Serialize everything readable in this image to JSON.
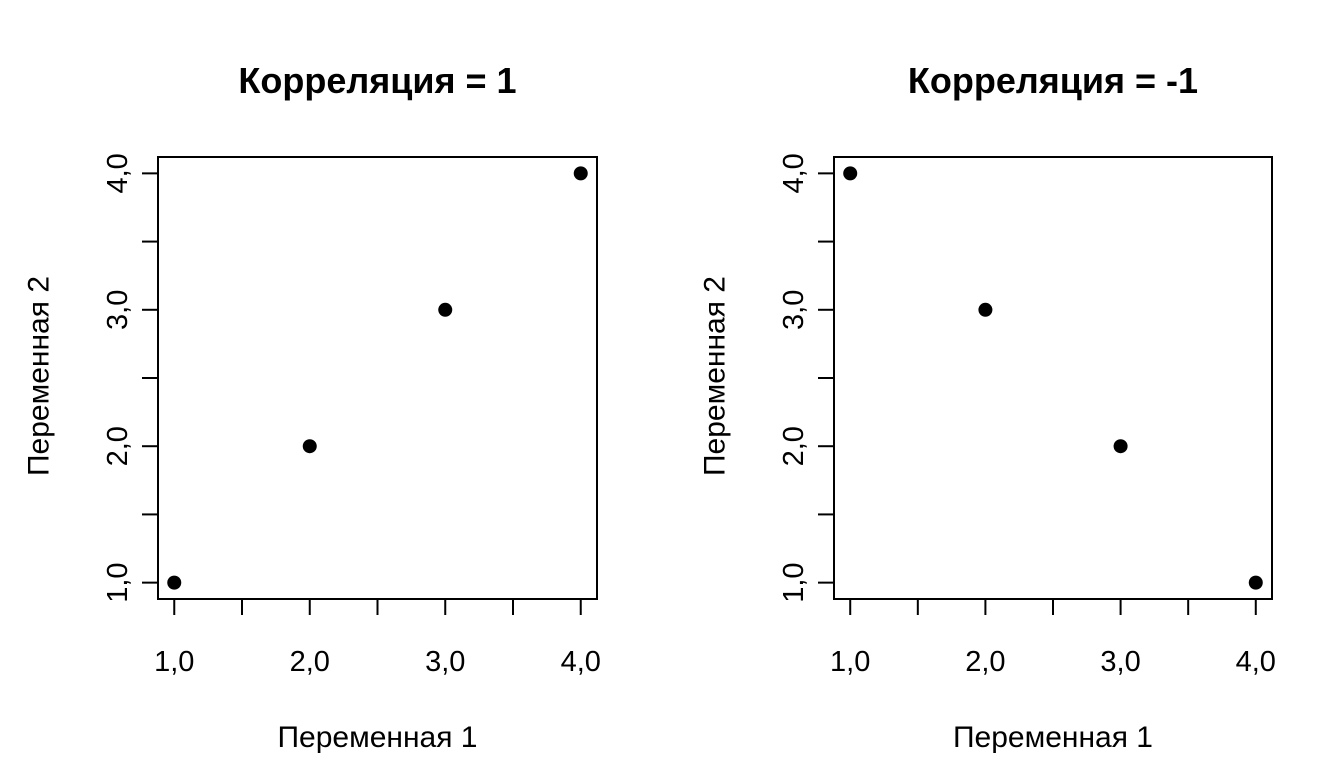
{
  "chart_data": [
    {
      "type": "scatter",
      "title": "Корреляция = 1",
      "xlabel": "Переменная 1",
      "ylabel": "Переменная 2",
      "xlim": [
        0.88,
        4.12
      ],
      "ylim": [
        0.88,
        4.12
      ],
      "x_ticks": [
        1.0,
        1.5,
        2.0,
        2.5,
        3.0,
        3.5,
        4.0
      ],
      "x_tick_labels": [
        "1,0",
        "",
        "2,0",
        "",
        "3,0",
        "",
        "4,0"
      ],
      "y_ticks": [
        1.0,
        1.5,
        2.0,
        2.5,
        3.0,
        3.5,
        4.0
      ],
      "y_tick_labels": [
        "1,0",
        "",
        "2,0",
        "",
        "3,0",
        "",
        "4,0"
      ],
      "grid": false,
      "series": [
        {
          "x": [
            1,
            2,
            3,
            4
          ],
          "y": [
            1,
            2,
            3,
            4
          ],
          "color": "#000000"
        }
      ]
    },
    {
      "type": "scatter",
      "title": "Корреляция = -1",
      "xlabel": "Переменная 1",
      "ylabel": "Переменная 2",
      "xlim": [
        0.88,
        4.12
      ],
      "ylim": [
        0.88,
        4.12
      ],
      "x_ticks": [
        1.0,
        1.5,
        2.0,
        2.5,
        3.0,
        3.5,
        4.0
      ],
      "x_tick_labels": [
        "1,0",
        "",
        "2,0",
        "",
        "3,0",
        "",
        "4,0"
      ],
      "y_ticks": [
        1.0,
        1.5,
        2.0,
        2.5,
        3.0,
        3.5,
        4.0
      ],
      "y_tick_labels": [
        "1,0",
        "",
        "2,0",
        "",
        "3,0",
        "",
        "4,0"
      ],
      "grid": false,
      "series": [
        {
          "x": [
            1,
            2,
            3,
            4
          ],
          "y": [
            4,
            3,
            2,
            1
          ],
          "color": "#000000"
        }
      ]
    }
  ]
}
